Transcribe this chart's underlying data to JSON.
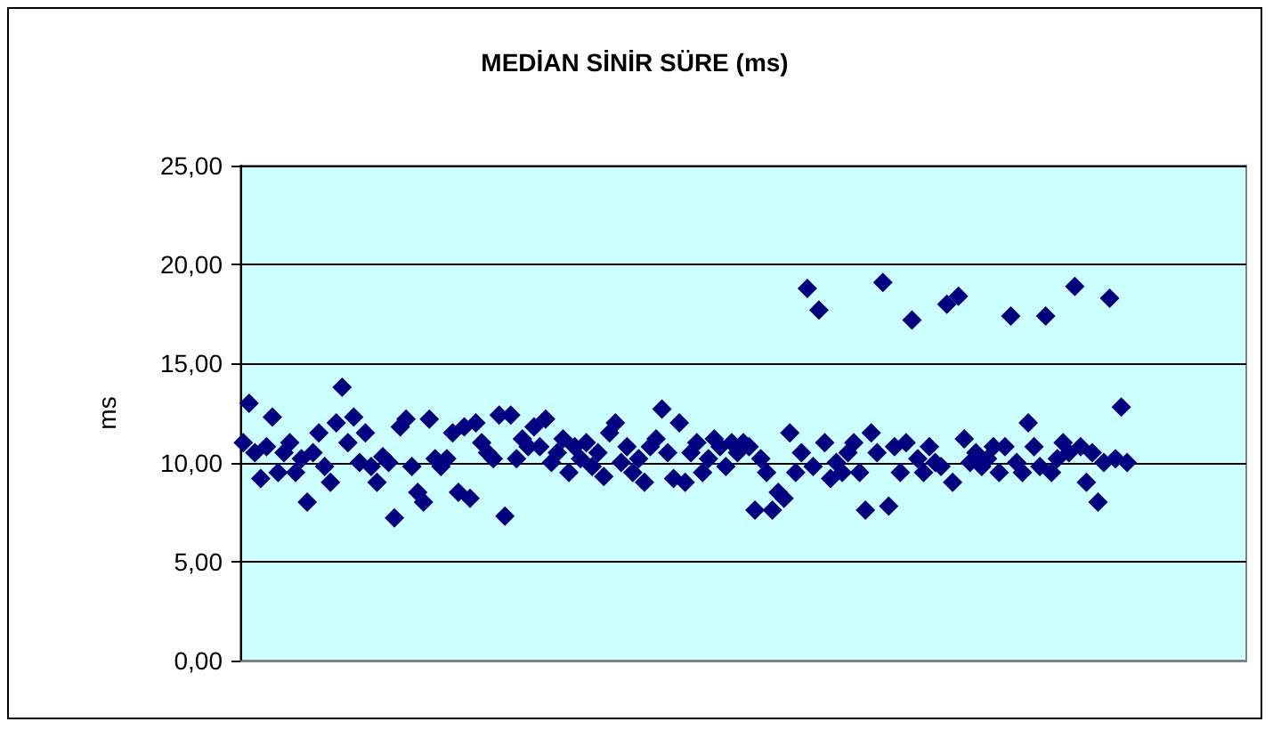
{
  "chart_data": {
    "type": "scatter",
    "title": "MEDİAN SİNİR SÜRE (ms)",
    "ylabel": "ms",
    "categories": [
      null,
      null,
      null,
      null,
      null,
      null,
      null,
      null,
      null,
      null,
      null,
      null,
      null,
      null,
      null,
      null,
      null,
      null,
      null,
      null,
      null,
      null,
      null,
      null,
      null,
      null,
      null,
      null,
      null,
      null,
      null,
      null,
      null,
      null,
      null,
      null,
      null,
      null,
      null,
      null,
      null,
      null,
      null,
      null,
      null,
      null,
      null,
      null,
      null,
      null,
      null,
      null,
      null,
      null,
      null,
      null,
      null,
      null,
      null,
      null,
      null,
      null,
      null,
      null,
      null,
      null,
      null,
      null,
      null,
      null,
      null,
      null,
      null,
      null,
      null,
      null,
      null,
      null,
      null,
      null,
      null,
      null,
      null,
      null,
      null,
      null,
      null,
      null,
      null,
      null,
      null,
      null,
      null,
      null,
      null,
      null,
      null,
      null,
      null,
      null,
      null,
      null,
      null,
      null,
      null,
      null,
      null,
      null,
      null,
      null,
      null,
      null,
      null,
      null,
      null,
      null,
      null,
      null,
      null,
      null,
      null,
      null,
      null,
      null,
      null,
      null,
      null,
      null,
      null,
      null,
      null,
      null,
      null,
      null,
      null,
      null,
      null,
      null,
      null,
      null,
      null,
      null,
      null,
      null,
      null,
      null,
      null,
      null,
      null,
      null,
      null,
      null,
      null,
      null,
      null,
      null,
      null,
      null,
      null,
      null,
      null,
      null,
      null,
      null,
      null,
      null,
      null,
      null,
      null,
      null,
      null,
      null,
      null
    ],
    "series": [
      {
        "color": "#000080",
        "values": [
          11.0,
          13.0,
          10.5,
          9.2,
          10.8,
          12.3,
          9.5,
          10.5,
          11.0,
          9.5,
          10.2,
          8.0,
          10.5,
          11.5,
          9.8,
          9.0,
          12.0,
          13.8,
          11.0,
          12.3,
          10.0,
          11.5,
          9.8,
          9.0,
          10.3,
          10.0,
          7.2,
          11.8,
          12.2,
          9.8,
          8.5,
          8.0,
          12.2,
          10.2,
          9.8,
          10.2,
          11.5,
          8.5,
          11.8,
          8.2,
          12.0,
          11.0,
          10.5,
          10.2,
          12.4,
          7.3,
          12.4,
          10.2,
          11.2,
          10.8,
          11.8,
          10.8,
          12.2,
          10.0,
          10.5,
          11.2,
          9.5,
          10.8,
          10.2,
          11.0,
          9.8,
          10.5,
          9.3,
          11.5,
          12.0,
          10.0,
          10.8,
          9.5,
          10.2,
          9.0,
          10.8,
          11.2,
          12.7,
          10.5,
          9.2,
          12.0,
          9.0,
          10.5,
          11.0,
          9.5,
          10.2,
          11.2,
          10.8,
          9.8,
          11.0,
          10.5,
          11.0,
          10.8,
          7.6,
          10.2,
          9.5,
          7.6,
          8.5,
          8.2,
          11.5,
          9.5,
          10.5,
          18.8,
          9.8,
          17.7,
          11.0,
          9.2,
          10.0,
          9.5,
          10.5,
          11.0,
          9.5,
          7.6,
          11.5,
          10.5,
          19.1,
          7.8,
          10.8,
          9.5,
          11.0,
          17.2,
          10.2,
          9.5,
          10.8,
          10.0,
          9.8,
          18.0,
          9.0,
          18.4,
          11.2,
          10.0,
          10.5,
          9.8,
          10.2,
          10.8,
          9.5,
          10.8,
          17.4,
          10.0,
          9.5,
          12.0,
          10.8,
          9.8,
          17.4,
          9.5,
          10.2,
          11.0,
          10.5,
          18.9,
          10.8,
          9.0,
          10.5,
          8.0,
          10.0,
          18.3,
          10.2,
          12.8,
          10.0,
          null,
          null,
          null,
          null,
          null,
          null,
          null,
          null,
          null,
          null,
          null,
          null,
          null,
          null,
          null,
          null,
          null,
          null,
          null,
          null
        ]
      }
    ],
    "ylim": [
      0,
      25
    ],
    "yticks": [
      {
        "value": 0,
        "label": "0,00"
      },
      {
        "value": 5,
        "label": "5,00"
      },
      {
        "value": 10,
        "label": "10,00"
      },
      {
        "value": 15,
        "label": "15,00"
      },
      {
        "value": 20,
        "label": "20,00"
      },
      {
        "value": 25,
        "label": "25,00"
      }
    ],
    "grid": "y",
    "marker": "diamond",
    "tick_labels": "y"
  }
}
